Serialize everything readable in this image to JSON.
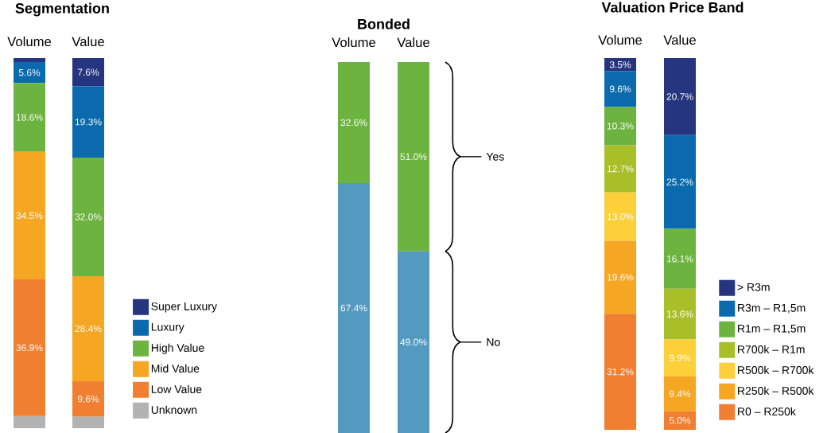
{
  "chart_data": [
    {
      "type": "bar",
      "stacked": true,
      "title": "Segmentation",
      "categories": [
        "Volume",
        "Value"
      ],
      "legend": "right",
      "series": [
        {
          "name": "Unknown",
          "color": "#b3b3b3",
          "values": [
            3.3,
            3.1
          ],
          "value_labels": [
            null,
            null
          ]
        },
        {
          "name": "Low Value",
          "color": "#f07f32",
          "values": [
            36.9,
            9.6
          ],
          "value_labels": [
            "36.9%",
            "9.6%"
          ]
        },
        {
          "name": "Mid Value",
          "color": "#f5a623",
          "values": [
            34.5,
            28.4
          ],
          "value_labels": [
            "34.5%",
            "28.4%"
          ]
        },
        {
          "name": "High Value",
          "color": "#6db33f",
          "values": [
            18.6,
            32.0
          ],
          "value_labels": [
            "18.6%",
            "32.0%"
          ]
        },
        {
          "name": "Luxury",
          "color": "#0a6aad",
          "values": [
            5.6,
            19.3
          ],
          "value_labels": [
            "5.6%",
            "19.3%"
          ]
        },
        {
          "name": "Super Luxury",
          "color": "#263580",
          "values": [
            1.1,
            7.6
          ],
          "value_labels": [
            null,
            "7.6%"
          ]
        }
      ]
    },
    {
      "type": "bar",
      "stacked": true,
      "title": "Bonded",
      "categories": [
        "Volume",
        "Value"
      ],
      "legend": false,
      "series": [
        {
          "name": "No",
          "color": "#5499c0",
          "values": [
            67.4,
            49.0
          ],
          "value_labels": [
            "67.4%",
            "49.0%"
          ]
        },
        {
          "name": "Yes",
          "color": "#6db33f",
          "values": [
            32.6,
            51.0
          ],
          "value_labels": [
            "32.6%",
            "51.0%"
          ]
        }
      ]
    },
    {
      "type": "bar",
      "stacked": true,
      "title": "Valuation Price Band",
      "categories": [
        "Volume",
        "Value"
      ],
      "legend": "right",
      "series": [
        {
          "name": "R0 – R250k",
          "color": "#f07f32",
          "values": [
            31.2,
            5.0
          ],
          "value_labels": [
            "31.2%",
            "5.0%"
          ]
        },
        {
          "name": "R250k – R500k",
          "color": "#f5a623",
          "values": [
            19.6,
            9.4
          ],
          "value_labels": [
            "19.6%",
            "9.4%"
          ]
        },
        {
          "name": "R500k – R700k",
          "color": "#fdd03a",
          "values": [
            13.0,
            9.9
          ],
          "value_labels": [
            "13.0%",
            "9.9%"
          ]
        },
        {
          "name": "R700k – R1m",
          "color": "#a8bf2a",
          "values": [
            12.7,
            13.6
          ],
          "value_labels": [
            "12.7%",
            "13.6%"
          ]
        },
        {
          "name": "R1m – R1,5m",
          "color": "#6db33f",
          "values": [
            10.3,
            16.1
          ],
          "value_labels": [
            "10.3%",
            "16.1%"
          ]
        },
        {
          "name": "R3m – R1,5m",
          "color": "#0a6aad",
          "values": [
            9.6,
            25.2
          ],
          "value_labels": [
            "9.6%",
            "25.2%"
          ]
        },
        {
          "name": "> R3m",
          "color": "#263580",
          "values": [
            3.5,
            20.7
          ],
          "value_labels": [
            "3.5%",
            "20.7%"
          ]
        }
      ]
    }
  ]
}
